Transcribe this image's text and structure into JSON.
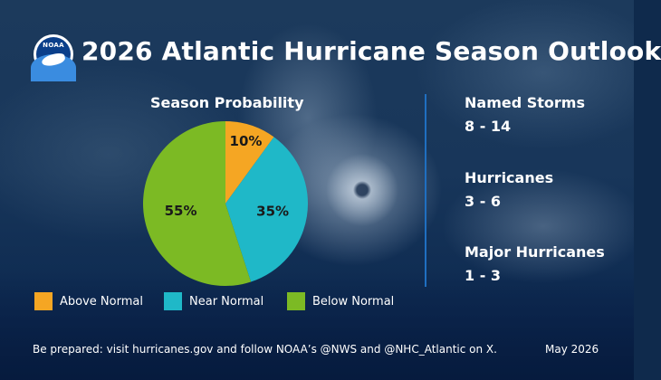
{
  "header": {
    "logo_text": "NOAA",
    "title": "2026 Atlantic Hurricane Season Outlook"
  },
  "chart_data": {
    "type": "pie",
    "title": "Season Probability",
    "slices": [
      {
        "name": "Above Normal",
        "value": 10,
        "label": "10%",
        "color": "#F5A623"
      },
      {
        "name": "Near Normal",
        "value": 35,
        "label": "35%",
        "color": "#1FB8C8"
      },
      {
        "name": "Below Normal",
        "value": 55,
        "label": "55%",
        "color": "#7CBA24"
      }
    ],
    "legend": [
      "Above Normal",
      "Near Normal",
      "Below Normal"
    ]
  },
  "stats": [
    {
      "label": "Named Storms",
      "value": "8 - 14"
    },
    {
      "label": "Hurricanes",
      "value": "3 - 6"
    },
    {
      "label": "Major Hurricanes",
      "value": "1 - 3"
    }
  ],
  "footer": {
    "text": "Be prepared: visit hurricanes.gov and follow NOAA’s @NWS and @NHC_Atlantic on X.",
    "date": "May 2026"
  }
}
